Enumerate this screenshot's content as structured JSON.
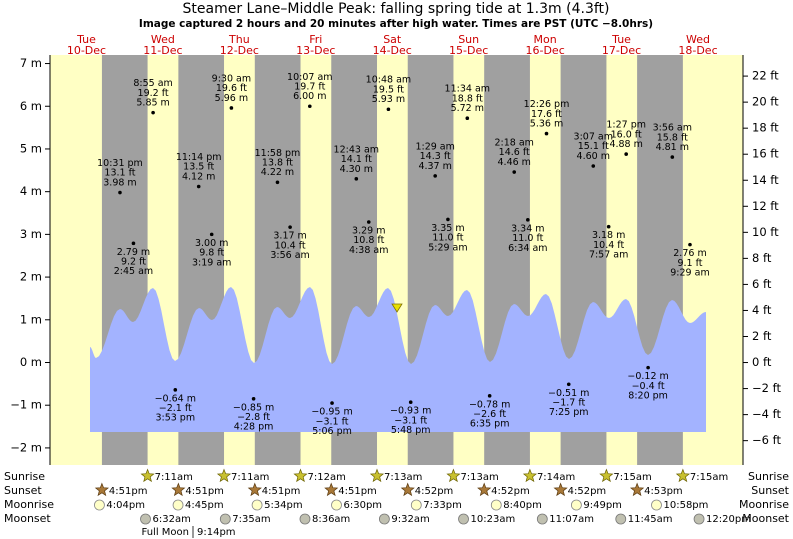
{
  "title": "Steamer Lane–Middle Peak: falling  spring tide at 1.3m (4.3ft)",
  "subtitle": "Image captured 2 hours and 20 minutes after high water. Times are PST (UTC −8.0hrs)",
  "axes": {
    "ylim": [
      -2.4,
      7.2
    ],
    "yticks": [
      {
        "value": -2,
        "label": "−2 m"
      },
      {
        "value": -1,
        "label": "−1 m"
      },
      {
        "value": 0,
        "label": "0 m"
      },
      {
        "value": 1,
        "label": "1 m"
      },
      {
        "value": 2,
        "label": "2 m"
      },
      {
        "value": 3,
        "label": "3 m"
      },
      {
        "value": 4,
        "label": "4 m"
      },
      {
        "value": 5,
        "label": "5 m"
      },
      {
        "value": 6,
        "label": "6 m"
      },
      {
        "value": 7,
        "label": "7 m"
      }
    ],
    "y2lim": [
      -7.87,
      23.62
    ],
    "y2ticks": [
      {
        "value": -6,
        "label": "−6 ft"
      },
      {
        "value": -4,
        "label": "−4 ft"
      },
      {
        "value": -2,
        "label": "−2 ft"
      },
      {
        "value": 0,
        "label": "0 ft"
      },
      {
        "value": 2,
        "label": "2 ft"
      },
      {
        "value": 4,
        "label": "4 ft"
      },
      {
        "value": 6,
        "label": "6 ft"
      },
      {
        "value": 8,
        "label": "8 ft"
      },
      {
        "value": 10,
        "label": "10 ft"
      },
      {
        "value": 12,
        "label": "12 ft"
      },
      {
        "value": 14,
        "label": "14 ft"
      },
      {
        "value": 16,
        "label": "16 ft"
      },
      {
        "value": 18,
        "label": "18 ft"
      },
      {
        "value": 20,
        "label": "20 ft"
      },
      {
        "value": 22,
        "label": "22 ft"
      }
    ]
  },
  "rows": {
    "sunrise": "Sunrise",
    "sunset": "Sunset",
    "moonrise": "Moonrise",
    "moonset": "Moonset"
  },
  "moon_phase": {
    "name": "Full Moon",
    "time": "9:14pm"
  },
  "days": [
    {
      "dow": "Tue",
      "date": "10-Dec",
      "sunset": "4:51pm",
      "moonrise": "4:04pm",
      "tides": [
        {
          "time": "10:31 pm",
          "m": 3.98,
          "m_label": "3.98 m",
          "ft_label": "13.1 ft"
        }
      ]
    },
    {
      "dow": "Wed",
      "date": "11-Dec",
      "sunrise": "7:11am",
      "sunset": "4:51pm",
      "moonrise": "4:45pm",
      "moonset": "6:32am",
      "tides": [
        {
          "time": "2:45 am",
          "m": 2.79,
          "m_label": "2.79 m",
          "ft_label": "9.2 ft"
        },
        {
          "time": "8:55 am",
          "m": 5.85,
          "m_label": "5.85 m",
          "ft_label": "19.2 ft"
        },
        {
          "time": "3:53 pm",
          "m": -0.64,
          "m_label": "−0.64 m",
          "ft_label": "−2.1 ft"
        },
        {
          "time": "11:14 pm",
          "m": 4.12,
          "m_label": "4.12 m",
          "ft_label": "13.5 ft"
        }
      ]
    },
    {
      "dow": "Thu",
      "date": "12-Dec",
      "sunrise": "7:11am",
      "sunset": "4:51pm",
      "moonrise": "5:34pm",
      "moonset": "7:35am",
      "tides": [
        {
          "time": "3:19 am",
          "m": 3.0,
          "m_label": "3.00 m",
          "ft_label": "9.8 ft"
        },
        {
          "time": "9:30 am",
          "m": 5.96,
          "m_label": "5.96 m",
          "ft_label": "19.6 ft"
        },
        {
          "time": "4:28 pm",
          "m": -0.85,
          "m_label": "−0.85 m",
          "ft_label": "−2.8 ft"
        },
        {
          "time": "11:58 pm",
          "m": 4.22,
          "m_label": "4.22 m",
          "ft_label": "13.8 ft"
        }
      ]
    },
    {
      "dow": "Fri",
      "date": "13-Dec",
      "sunrise": "7:12am",
      "sunset": "4:51pm",
      "moonrise": "6:30pm",
      "moonset": "8:36am",
      "tides": [
        {
          "time": "3:56 am",
          "m": 3.17,
          "m_label": "3.17 m",
          "ft_label": "10.4 ft"
        },
        {
          "time": "10:07 am",
          "m": 6.0,
          "m_label": "6.00 m",
          "ft_label": "19.7 ft"
        },
        {
          "time": "5:06 pm",
          "m": -0.95,
          "m_label": "−0.95 m",
          "ft_label": "−3.1 ft"
        }
      ]
    },
    {
      "dow": "Sat",
      "date": "14-Dec",
      "sunrise": "7:13am",
      "sunset": "4:52pm",
      "moonrise": "7:33pm",
      "moonset": "9:32am",
      "tides": [
        {
          "time": "12:43 am",
          "m": 4.3,
          "m_label": "4.30 m",
          "ft_label": "14.1 ft"
        },
        {
          "time": "4:38 am",
          "m": 3.29,
          "m_label": "3.29 m",
          "ft_label": "10.8 ft"
        },
        {
          "time": "10:48 am",
          "m": 5.93,
          "m_label": "5.93 m",
          "ft_label": "19.5 ft"
        },
        {
          "time": "5:48 pm",
          "m": -0.93,
          "m_label": "−0.93 m",
          "ft_label": "−3.1 ft"
        }
      ]
    },
    {
      "dow": "Sun",
      "date": "15-Dec",
      "sunrise": "7:13am",
      "sunset": "4:52pm",
      "moonrise": "8:40pm",
      "moonset": "10:23am",
      "tides": [
        {
          "time": "1:29 am",
          "m": 4.37,
          "m_label": "4.37 m",
          "ft_label": "14.3 ft"
        },
        {
          "time": "5:29 am",
          "m": 3.35,
          "m_label": "3.35 m",
          "ft_label": "11.0 ft"
        },
        {
          "time": "11:34 am",
          "m": 5.72,
          "m_label": "5.72 m",
          "ft_label": "18.8 ft"
        },
        {
          "time": "6:35 pm",
          "m": -0.78,
          "m_label": "−0.78 m",
          "ft_label": "−2.6 ft"
        }
      ]
    },
    {
      "dow": "Mon",
      "date": "16-Dec",
      "sunrise": "7:14am",
      "sunset": "4:52pm",
      "moonrise": "9:49pm",
      "moonset": "11:07am",
      "tides": [
        {
          "time": "2:18 am",
          "m": 4.46,
          "m_label": "4.46 m",
          "ft_label": "14.6 ft"
        },
        {
          "time": "6:34 am",
          "m": 3.34,
          "m_label": "3.34 m",
          "ft_label": "11.0 ft"
        },
        {
          "time": "12:26 pm",
          "m": 5.36,
          "m_label": "5.36 m",
          "ft_label": "17.6 ft"
        },
        {
          "time": "7:25 pm",
          "m": -0.51,
          "m_label": "−0.51 m",
          "ft_label": "−1.7 ft"
        }
      ]
    },
    {
      "dow": "Tue",
      "date": "17-Dec",
      "sunrise": "7:15am",
      "sunset": "4:53pm",
      "moonrise": "10:58pm",
      "moonset": "11:45am",
      "tides": [
        {
          "time": "3:07 am",
          "m": 4.6,
          "m_label": "4.60 m",
          "ft_label": "15.1 ft"
        },
        {
          "time": "7:57 am",
          "m": 3.18,
          "m_label": "3.18 m",
          "ft_label": "10.4 ft"
        },
        {
          "time": "1:27 pm",
          "m": 4.88,
          "m_label": "4.88 m",
          "ft_label": "16.0 ft"
        },
        {
          "time": "8:20 pm",
          "m": -0.12,
          "m_label": "−0.12 m",
          "ft_label": "−0.4 ft"
        }
      ]
    },
    {
      "dow": "Wed",
      "date": "18-Dec",
      "sunrise": "7:15am",
      "moonset": "12:20pm",
      "tides": [
        {
          "time": "3:56 am",
          "m": 4.81,
          "m_label": "4.81 m",
          "ft_label": "15.8 ft"
        },
        {
          "time": "9:29 am",
          "m": 2.76,
          "m_label": "2.76 m",
          "ft_label": "9.1 ft"
        }
      ]
    }
  ]
}
